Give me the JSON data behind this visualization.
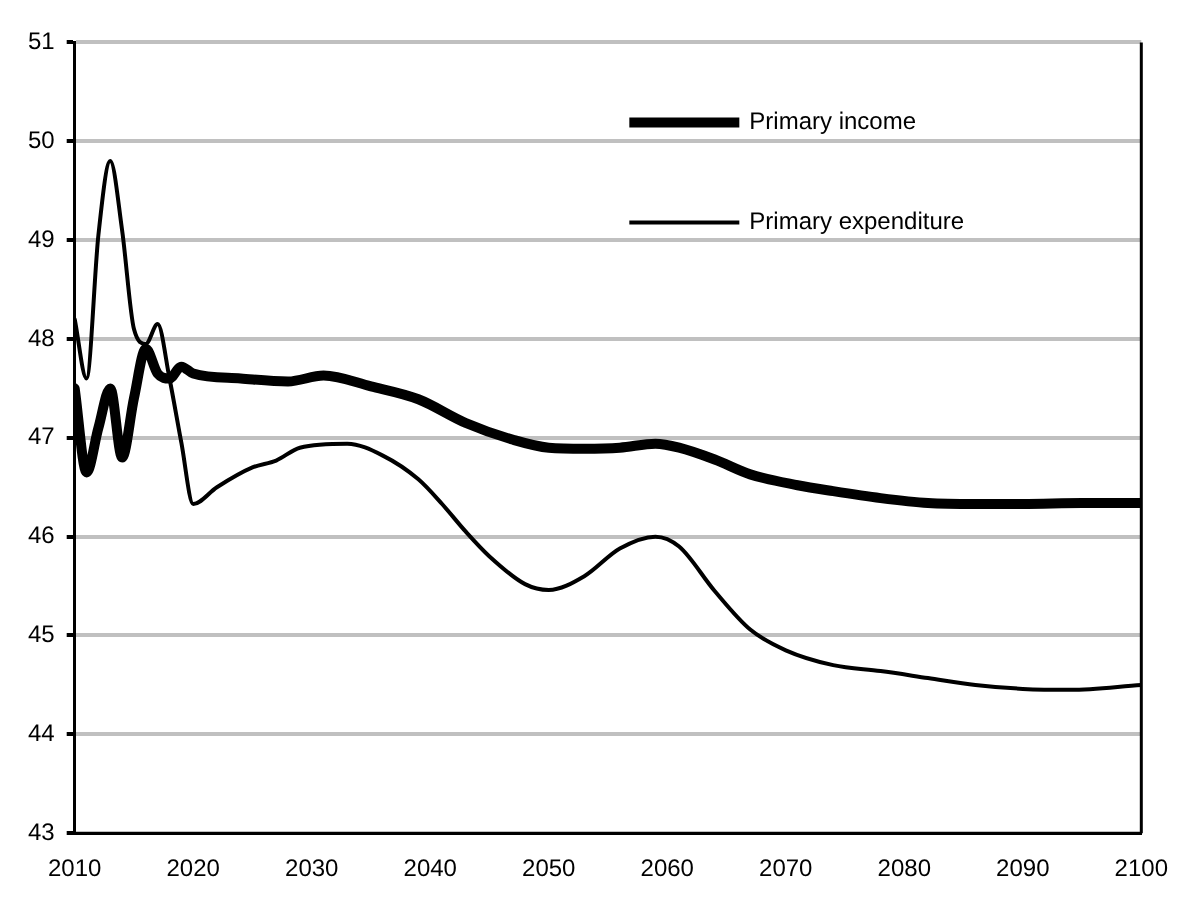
{
  "chart_data": {
    "type": "line",
    "xlim": [
      2010,
      2100
    ],
    "xticks": [
      2010,
      2020,
      2030,
      2040,
      2050,
      2060,
      2070,
      2080,
      2090,
      2100
    ],
    "ylim": [
      43,
      51
    ],
    "yticks": [
      43,
      44,
      45,
      46,
      47,
      48,
      49,
      50,
      51
    ],
    "grid": "y",
    "legend": "top right",
    "marker": "none",
    "line_style": "solid",
    "series": [
      {
        "name": "Primary income",
        "color": "#000000",
        "x": [
          2010,
          2011,
          2012,
          2013,
          2014,
          2015,
          2016,
          2017,
          2018,
          2019,
          2020,
          2024,
          2028,
          2031,
          2035,
          2039,
          2043,
          2047,
          2050,
          2053,
          2056,
          2059,
          2061,
          2064,
          2067,
          2071,
          2074,
          2078,
          2082,
          2086,
          2090,
          2095,
          2100
        ],
        "values": [
          47.5,
          46.65,
          47.1,
          47.5,
          46.8,
          47.4,
          47.9,
          47.65,
          47.6,
          47.72,
          47.65,
          47.6,
          47.57,
          47.63,
          47.52,
          47.39,
          47.15,
          46.98,
          46.9,
          46.89,
          46.9,
          46.94,
          46.9,
          46.78,
          46.63,
          46.52,
          46.46,
          46.39,
          46.34,
          46.33,
          46.33,
          46.34,
          46.34
        ]
      },
      {
        "name": "Primary expenditure",
        "color": "#000000",
        "x": [
          2010,
          2011,
          2012,
          2013,
          2014,
          2015,
          2016,
          2017,
          2018,
          2019,
          2020,
          2022,
          2025,
          2027,
          2029,
          2033,
          2036,
          2039,
          2041,
          2043,
          2045,
          2048,
          2050,
          2053,
          2056,
          2059,
          2061,
          2064,
          2067,
          2070,
          2074,
          2078,
          2082,
          2086,
          2090,
          2094,
          2100
        ],
        "values": [
          48.2,
          47.6,
          49.05,
          49.8,
          49.1,
          48.1,
          47.95,
          48.15,
          47.6,
          46.95,
          46.33,
          46.5,
          46.7,
          46.77,
          46.9,
          46.94,
          46.82,
          46.58,
          46.33,
          46.05,
          45.8,
          45.52,
          45.46,
          45.6,
          45.88,
          46.0,
          45.9,
          45.45,
          45.06,
          44.85,
          44.7,
          44.64,
          44.57,
          44.5,
          44.46,
          44.45,
          44.5
        ]
      }
    ]
  }
}
